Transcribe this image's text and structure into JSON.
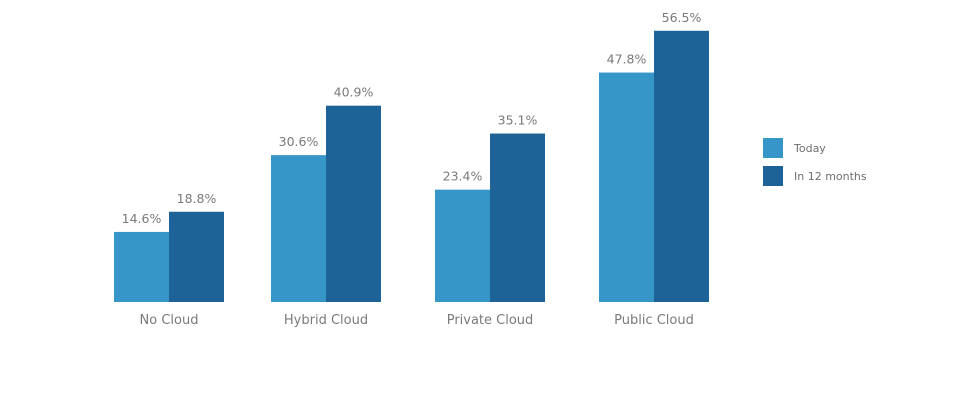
{
  "chart_data": {
    "type": "bar",
    "title": "",
    "xlabel": "",
    "ylabel": "",
    "ylim": [
      0,
      60
    ],
    "grid": false,
    "legend_position": "right",
    "value_format": "percent-1dp",
    "categories": [
      "No Cloud",
      "Hybrid Cloud",
      "Private Cloud",
      "Public Cloud"
    ],
    "series": [
      {
        "name": "Today",
        "color": "#3796c8",
        "values": [
          14.6,
          30.6,
          23.4,
          47.8
        ],
        "labels": [
          "14.6%",
          "30.6%",
          "23.4%",
          "47.8%"
        ]
      },
      {
        "name": "In 12 months",
        "color": "#1d6397",
        "values": [
          18.8,
          40.9,
          35.1,
          56.5
        ],
        "labels": [
          "18.8%",
          "40.9%",
          "35.1%",
          "56.5%"
        ]
      }
    ]
  }
}
